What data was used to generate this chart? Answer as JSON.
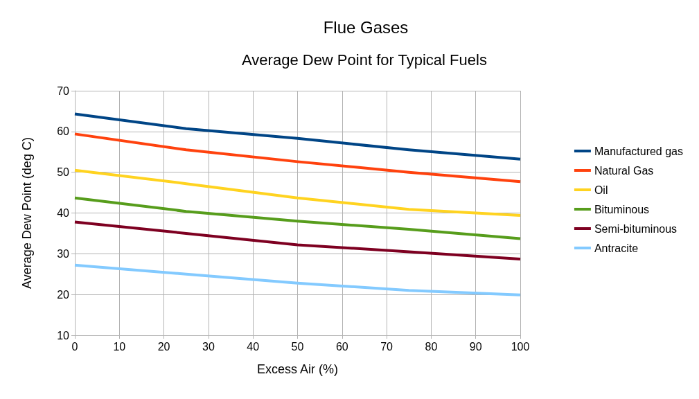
{
  "chart_data": {
    "type": "line",
    "title": "Flue Gases",
    "subtitle": "Average Dew Point for Typical Fuels",
    "xlabel": "Excess Air (%)",
    "ylabel": "Average Dew Point (deg C)",
    "x": [
      0,
      25,
      50,
      75,
      100
    ],
    "series": [
      {
        "name": "Manufactured gas",
        "color": "#004586",
        "values": [
          64.3,
          60.7,
          58.3,
          55.5,
          53.2
        ]
      },
      {
        "name": "Natural Gas",
        "color": "#ff420e",
        "values": [
          59.4,
          55.5,
          52.6,
          50,
          47.7
        ]
      },
      {
        "name": "Oil",
        "color": "#ffd320",
        "values": [
          50.5,
          47.2,
          43.7,
          40.9,
          39.4
        ]
      },
      {
        "name": "Bituminous",
        "color": "#579d1c",
        "values": [
          43.7,
          40.4,
          38,
          36,
          33.7
        ]
      },
      {
        "name": "Semi-bituminous",
        "color": "#7e0021",
        "values": [
          37.8,
          35,
          32.2,
          30.5,
          28.7
        ]
      },
      {
        "name": "Antracite",
        "color": "#83caff",
        "values": [
          27.2,
          25,
          22.8,
          21,
          19.9
        ]
      }
    ],
    "xlim": [
      0,
      100
    ],
    "xticks": [
      0,
      10,
      20,
      30,
      40,
      50,
      60,
      70,
      80,
      90,
      100
    ],
    "ylim": [
      10,
      70
    ],
    "yticks": [
      10,
      20,
      30,
      40,
      50,
      60,
      70
    ],
    "grid": true,
    "legend": "right",
    "marker": "none",
    "line_style": "solid"
  }
}
